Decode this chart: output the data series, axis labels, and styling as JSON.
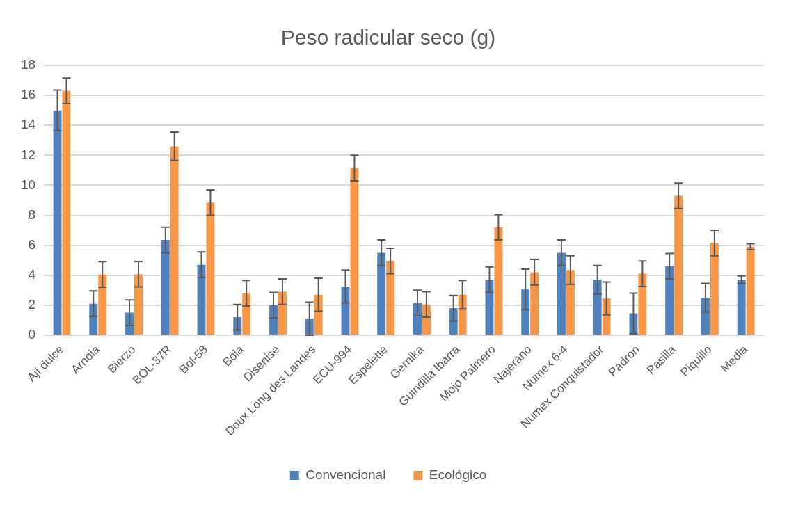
{
  "chart_data": {
    "type": "bar",
    "title": "Peso radicular seco (g)",
    "categories": [
      "Ají dulce",
      "Arnoia",
      "Bierzo",
      "BOL-37R",
      "Bol-58",
      "Bola",
      "Disenise",
      "Doux Long des Landes",
      "ECU-994",
      "Espelette",
      "Gernika",
      "Guindilla Ibarra",
      "Mojo Palmero",
      "Najerano",
      "Numex 6-4",
      "Numex Conquistador",
      "Padron",
      "Pasilla",
      "Piquillo",
      "Media"
    ],
    "series": [
      {
        "name": "Convencional",
        "color": "#4f81bd",
        "values": [
          15.0,
          2.1,
          1.5,
          6.35,
          4.7,
          1.2,
          2.0,
          1.1,
          3.25,
          5.5,
          2.15,
          1.8,
          3.7,
          3.05,
          5.5,
          3.7,
          1.45,
          4.6,
          2.5,
          3.7
        ],
        "errors": [
          1.35,
          0.85,
          0.85,
          0.85,
          0.85,
          0.85,
          0.85,
          1.1,
          1.1,
          0.85,
          0.85,
          0.85,
          0.85,
          1.35,
          0.85,
          0.95,
          1.35,
          0.85,
          0.95,
          0.25
        ]
      },
      {
        "name": "Ecológico",
        "color": "#f79646",
        "values": [
          16.3,
          4.05,
          4.07,
          12.6,
          8.85,
          2.8,
          2.9,
          2.7,
          11.15,
          4.95,
          2.05,
          2.7,
          7.2,
          4.2,
          4.35,
          2.45,
          4.1,
          9.3,
          6.15,
          5.9
        ],
        "errors": [
          0.85,
          0.85,
          0.85,
          0.95,
          0.85,
          0.85,
          0.85,
          1.1,
          0.85,
          0.85,
          0.85,
          0.95,
          0.85,
          0.85,
          0.95,
          1.1,
          0.85,
          0.85,
          0.85,
          0.2
        ]
      }
    ],
    "ylim": [
      0,
      18
    ],
    "yticks": [
      0,
      2,
      4,
      6,
      8,
      10,
      12,
      14,
      16,
      18
    ],
    "grid": "y",
    "legend": "bottom"
  }
}
